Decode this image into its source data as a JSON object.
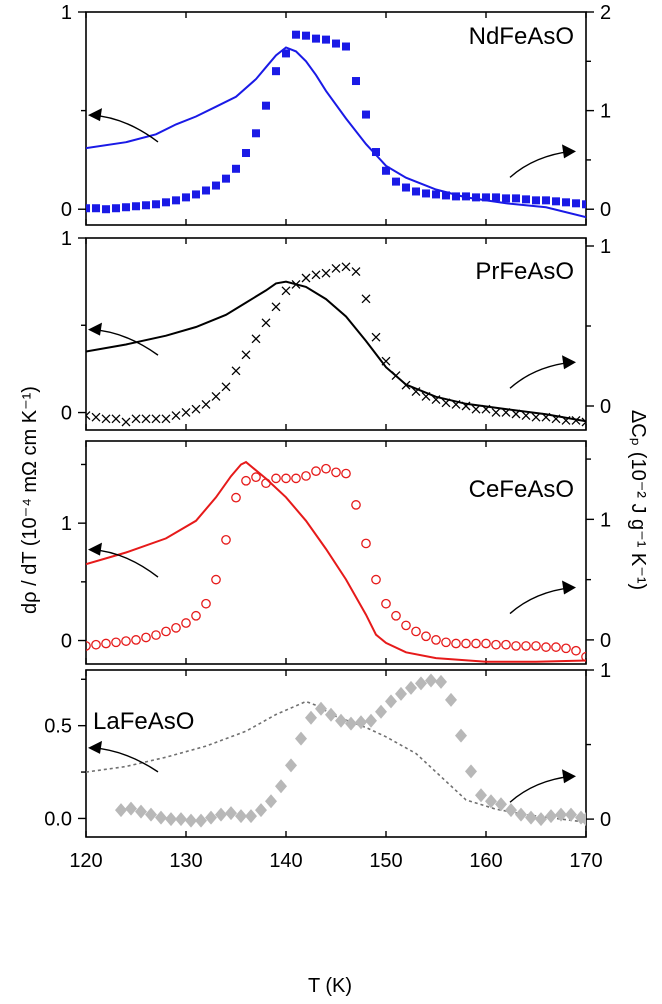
{
  "colors": {
    "nd": "#1a1ae6",
    "pr": "#000000",
    "ce": "#e61a1a",
    "la_line": "#707070",
    "la_marker": "#b8b8b8"
  },
  "chart_data": {
    "type": "line",
    "xlabel": "T (K)",
    "ylabel_left": "dρ / dT (10⁻⁴ mΩ cm K⁻¹)",
    "ylabel_right": "ΔCₚ (10⁻² J g⁻¹ K⁻¹)",
    "x_ticks": [
      120,
      130,
      140,
      150,
      160,
      170
    ],
    "xlim": [
      120,
      170
    ],
    "panels": [
      {
        "name": "NdFeAsO",
        "label_pos": "top-right",
        "left_ylim": [
          -0.08,
          1.0
        ],
        "right_ylim": [
          -0.16,
          2.0
        ],
        "left_ticks": [
          0,
          1
        ],
        "right_ticks": [
          0,
          1,
          2
        ],
        "line_style": "solid",
        "marker": "square",
        "resistivity_derivative": {
          "x": [
            120,
            124,
            127,
            129,
            131,
            133,
            135,
            137,
            138,
            139,
            140,
            141,
            142,
            143,
            144,
            146,
            148,
            150,
            152,
            155,
            158,
            162,
            166,
            170
          ],
          "y": [
            0.31,
            0.34,
            0.38,
            0.43,
            0.47,
            0.52,
            0.57,
            0.66,
            0.72,
            0.78,
            0.82,
            0.8,
            0.75,
            0.68,
            0.6,
            0.46,
            0.33,
            0.22,
            0.16,
            0.1,
            0.06,
            0.03,
            0.01,
            -0.04
          ]
        },
        "specific_heat": {
          "x": [
            120,
            121,
            122,
            123,
            124,
            125,
            126,
            127,
            128,
            129,
            130,
            131,
            132,
            133,
            134,
            135,
            136,
            137,
            138,
            139,
            140,
            141,
            142,
            143,
            144,
            145,
            146,
            147,
            148,
            149,
            150,
            151,
            152,
            153,
            154,
            155,
            156,
            157,
            158,
            159,
            160,
            161,
            162,
            163,
            164,
            165,
            166,
            167,
            168,
            169,
            170
          ],
          "y": [
            0.01,
            0.01,
            0.0,
            0.01,
            0.02,
            0.03,
            0.04,
            0.05,
            0.07,
            0.09,
            0.12,
            0.15,
            0.19,
            0.24,
            0.31,
            0.41,
            0.57,
            0.77,
            1.05,
            1.4,
            1.58,
            1.77,
            1.76,
            1.73,
            1.72,
            1.68,
            1.65,
            1.3,
            0.96,
            0.58,
            0.39,
            0.28,
            0.22,
            0.18,
            0.16,
            0.15,
            0.14,
            0.13,
            0.13,
            0.12,
            0.12,
            0.12,
            0.11,
            0.11,
            0.1,
            0.09,
            0.09,
            0.08,
            0.07,
            0.06,
            0.05
          ]
        }
      },
      {
        "name": "PrFeAsO",
        "label_pos": "top-right",
        "left_ylim": [
          -0.1,
          1.0
        ],
        "right_ylim": [
          -0.15,
          1.05
        ],
        "left_ticks": [
          0,
          1
        ],
        "right_ticks": [
          0,
          1
        ],
        "line_style": "solid",
        "marker": "cross",
        "resistivity_derivative": {
          "x": [
            120,
            124,
            128,
            131,
            134,
            136,
            138,
            139,
            140,
            142,
            144,
            146,
            148,
            150,
            152,
            155,
            158,
            162,
            166,
            170
          ],
          "y": [
            0.35,
            0.39,
            0.44,
            0.49,
            0.56,
            0.63,
            0.7,
            0.74,
            0.75,
            0.72,
            0.65,
            0.55,
            0.41,
            0.26,
            0.16,
            0.09,
            0.05,
            0.02,
            -0.01,
            -0.05
          ]
        },
        "specific_heat": {
          "x": [
            120,
            121,
            122,
            123,
            124,
            125,
            126,
            127,
            128,
            129,
            130,
            131,
            132,
            133,
            134,
            135,
            136,
            137,
            138,
            139,
            140,
            141,
            142,
            143,
            144,
            145,
            146,
            147,
            148,
            149,
            150,
            151,
            152,
            153,
            154,
            155,
            156,
            157,
            158,
            159,
            160,
            161,
            162,
            163,
            164,
            165,
            166,
            167,
            168,
            169,
            170
          ],
          "y": [
            -0.06,
            -0.07,
            -0.08,
            -0.08,
            -0.1,
            -0.08,
            -0.08,
            -0.08,
            -0.08,
            -0.06,
            -0.04,
            -0.02,
            0.01,
            0.06,
            0.12,
            0.22,
            0.32,
            0.42,
            0.52,
            0.62,
            0.72,
            0.76,
            0.8,
            0.82,
            0.83,
            0.86,
            0.87,
            0.84,
            0.67,
            0.43,
            0.28,
            0.19,
            0.13,
            0.09,
            0.06,
            0.04,
            0.02,
            0.01,
            -0.0,
            -0.02,
            -0.02,
            -0.04,
            -0.04,
            -0.05,
            -0.06,
            -0.07,
            -0.07,
            -0.08,
            -0.09,
            -0.09,
            -0.1
          ]
        }
      },
      {
        "name": "CeFeAsO",
        "label_pos": "top-right",
        "left_ylim": [
          -0.2,
          1.7
        ],
        "right_ylim": [
          -0.2,
          1.65
        ],
        "left_ticks": [
          0,
          1
        ],
        "right_ticks": [
          0,
          1
        ],
        "line_style": "solid",
        "marker": "circle",
        "resistivity_derivative": {
          "x": [
            120,
            124,
            128,
            131,
            133,
            134.5,
            135.5,
            136,
            138,
            140,
            142,
            144,
            146,
            148,
            149,
            150,
            152,
            155,
            160,
            165,
            170
          ],
          "y": [
            0.65,
            0.75,
            0.87,
            1.02,
            1.22,
            1.4,
            1.5,
            1.52,
            1.38,
            1.22,
            1.02,
            0.78,
            0.52,
            0.22,
            0.05,
            -0.02,
            -0.1,
            -0.15,
            -0.18,
            -0.18,
            -0.17
          ]
        },
        "specific_heat": {
          "x": [
            120,
            121,
            122,
            123,
            124,
            125,
            126,
            127,
            128,
            129,
            130,
            131,
            132,
            133,
            134,
            135,
            136,
            137,
            138,
            139,
            140,
            141,
            142,
            143,
            144,
            145,
            146,
            147,
            148,
            149,
            150,
            151,
            152,
            153,
            154,
            155,
            156,
            157,
            158,
            159,
            160,
            161,
            162,
            163,
            164,
            165,
            166,
            167,
            168,
            169,
            170
          ],
          "y": [
            -0.05,
            -0.04,
            -0.03,
            -0.02,
            -0.01,
            0.0,
            0.02,
            0.04,
            0.07,
            0.1,
            0.14,
            0.2,
            0.3,
            0.5,
            0.83,
            1.18,
            1.32,
            1.35,
            1.3,
            1.34,
            1.34,
            1.34,
            1.36,
            1.4,
            1.42,
            1.39,
            1.38,
            1.12,
            0.8,
            0.5,
            0.3,
            0.2,
            0.12,
            0.07,
            0.03,
            0.0,
            -0.02,
            -0.03,
            -0.03,
            -0.03,
            -0.03,
            -0.04,
            -0.04,
            -0.05,
            -0.05,
            -0.05,
            -0.06,
            -0.06,
            -0.07,
            -0.09,
            -0.14
          ]
        }
      },
      {
        "name": "LaFeAsO",
        "label_pos": "top-left",
        "left_ylim": [
          -0.1,
          0.8
        ],
        "right_ylim": [
          -0.12,
          1.0
        ],
        "left_ticks": [
          0.0,
          0.5
        ],
        "right_ticks": [
          0,
          1
        ],
        "line_style": "dotted",
        "marker": "diamond",
        "resistivity_derivative": {
          "x": [
            120,
            124,
            128,
            132,
            136,
            139,
            142,
            143,
            145,
            148,
            150,
            153,
            156,
            158,
            161,
            164,
            167,
            170
          ],
          "y": [
            0.25,
            0.28,
            0.33,
            0.39,
            0.47,
            0.56,
            0.63,
            0.61,
            0.55,
            0.49,
            0.44,
            0.35,
            0.2,
            0.1,
            0.05,
            0.02,
            0.0,
            -0.02
          ]
        },
        "specific_heat": {
          "x": [
            123.5,
            124.5,
            125.5,
            126.5,
            127.5,
            128.5,
            129.5,
            130.5,
            131.5,
            132.5,
            133.5,
            134.5,
            135.5,
            136.5,
            137.5,
            138.5,
            139.5,
            140.5,
            141.5,
            142.5,
            143.5,
            144.5,
            145.5,
            146.5,
            147.5,
            148.5,
            149.5,
            150.5,
            151.5,
            152.5,
            153.5,
            154.5,
            155.5,
            156.5,
            157.5,
            158.5,
            159.5,
            160.5,
            161.5,
            162.5,
            163.5,
            164.5,
            165.5,
            166.5,
            167.5,
            168.5,
            169.5,
            170
          ],
          "y": [
            0.06,
            0.07,
            0.05,
            0.03,
            0.01,
            0.0,
            0.0,
            -0.01,
            -0.01,
            0.01,
            0.03,
            0.04,
            0.02,
            0.02,
            0.06,
            0.12,
            0.22,
            0.36,
            0.54,
            0.68,
            0.74,
            0.7,
            0.66,
            0.64,
            0.65,
            0.66,
            0.72,
            0.79,
            0.84,
            0.88,
            0.91,
            0.93,
            0.92,
            0.8,
            0.56,
            0.32,
            0.16,
            0.12,
            0.1,
            0.06,
            0.03,
            0.01,
            0.0,
            0.02,
            0.03,
            0.03,
            0.01,
            0.0
          ]
        }
      }
    ]
  }
}
